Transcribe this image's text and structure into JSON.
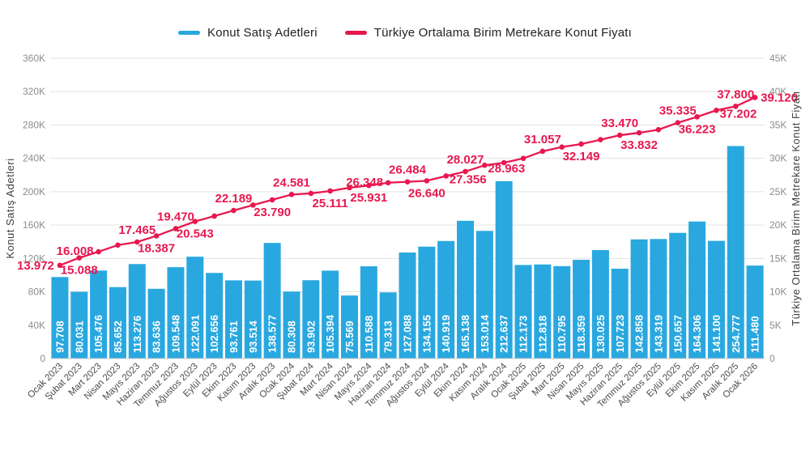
{
  "legend": {
    "items": [
      {
        "label": "Konut Satış Adetleri",
        "color": "#29A8E0"
      },
      {
        "label": "Türkiye Ortalama Birim Metrekare Konut Fiyatı",
        "color": "#E8184F"
      }
    ]
  },
  "colors": {
    "bar": "#29A8E0",
    "line": "#E8184F",
    "gridline": "#E3E3E3",
    "axis_line": "#C9C9C9",
    "tick_label": "#8C8C8C",
    "x_label": "#4D4D4D",
    "axis_title": "#3F3F3F",
    "bar_label": "#FFFFFF",
    "background": "#FFFFFF"
  },
  "chart_data": {
    "type": "bar+line",
    "categories": [
      "Ocak 2023",
      "Şubat 2023",
      "Mart 2023",
      "Nisan 2023",
      "Mayıs 2023",
      "Haziran 2023",
      "Temmuz 2023",
      "Ağustos 2023",
      "Eylül 2023",
      "Ekim 2023",
      "Kasım 2023",
      "Aralık 2023",
      "Ocak 2024",
      "Şubat 2024",
      "Mart 2024",
      "Nisan 2024",
      "Mayıs 2024",
      "Haziran 2024",
      "Temmuz 2024",
      "Ağustos 2024",
      "Eylül 2024",
      "Ekim 2024",
      "Kasım 2024",
      "Aralık 2024",
      "Ocak 2025",
      "Şubat 2025",
      "Mart 2025",
      "Nisan 2025",
      "Mayıs 2025",
      "Haziran 2025",
      "Temmuz 2025",
      "Ağustos 2025",
      "Eylül 2025",
      "Ekim 2025",
      "Kasım 2025",
      "Aralık 2025",
      "Ocak 2026"
    ],
    "series": [
      {
        "name": "Konut Satış Adetleri",
        "type": "bar",
        "axis": "left",
        "values": [
          97708,
          80031,
          105476,
          85652,
          113276,
          83636,
          109548,
          122091,
          102656,
          93761,
          93514,
          138577,
          80308,
          93902,
          105394,
          75569,
          110588,
          79313,
          127088,
          134155,
          140919,
          165138,
          153014,
          212637,
          112173,
          112818,
          110795,
          118359,
          130025,
          107723,
          142858,
          143319,
          150657,
          164306,
          141100,
          254777,
          111480
        ],
        "value_labels_visible": true
      },
      {
        "name": "Türkiye Ortalama Birim Metrekare Konut Fiyatı",
        "type": "line",
        "axis": "right",
        "values": [
          13972,
          15088,
          16008,
          17000,
          17465,
          18387,
          19470,
          20543,
          21350,
          22189,
          23000,
          23790,
          24581,
          24750,
          25111,
          25600,
          25931,
          26348,
          26484,
          26640,
          27356,
          28027,
          28963,
          29350,
          30000,
          31057,
          31700,
          32149,
          32800,
          33470,
          33832,
          34300,
          35335,
          36223,
          37202,
          37800,
          39120
        ],
        "label_pos": [
          "left",
          "below",
          "above-left",
          null,
          "above",
          "below",
          "above",
          "below",
          null,
          "above",
          null,
          "below",
          "above",
          null,
          "below",
          null,
          "below",
          "above-left",
          "above",
          "below",
          "below-right",
          "above",
          "below-right",
          null,
          null,
          "above",
          null,
          "below",
          null,
          "above",
          "below",
          null,
          "above",
          "below",
          "below-right",
          "above",
          "right"
        ]
      }
    ],
    "left_axis": {
      "title": "Konut Satış Adetleri",
      "ticks": [
        "0",
        "40K",
        "80K",
        "120K",
        "160K",
        "200K",
        "240K",
        "280K",
        "320K",
        "360K"
      ],
      "min": 0,
      "max": 360000
    },
    "right_axis": {
      "title": "Türkiye Ortalama Birim Metrekare Konut Fiyatı",
      "ticks": [
        "0",
        "5K",
        "10K",
        "15K",
        "20K",
        "25K",
        "30K",
        "35K",
        "40K",
        "45K"
      ],
      "min": 0,
      "max": 45000
    },
    "grid": true,
    "legend_position": "top-center"
  }
}
